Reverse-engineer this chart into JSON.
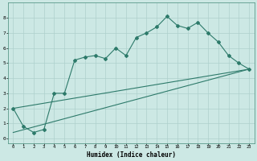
{
  "xlabel": "Humidex (Indice chaleur)",
  "ylabel": "",
  "bg_color": "#cce8e4",
  "grid_color": "#aed0cc",
  "line_color": "#2d7a6a",
  "xlim": [
    -0.5,
    23.5
  ],
  "ylim": [
    -0.3,
    9.0
  ],
  "xticks": [
    0,
    1,
    2,
    3,
    4,
    5,
    6,
    7,
    8,
    9,
    10,
    11,
    12,
    13,
    14,
    15,
    16,
    17,
    18,
    19,
    20,
    21,
    22,
    23
  ],
  "yticks": [
    0,
    1,
    2,
    3,
    4,
    5,
    6,
    7,
    8
  ],
  "curve1_x": [
    0,
    1,
    2,
    3,
    4,
    5,
    6,
    7,
    8,
    9,
    10,
    11,
    12,
    13,
    14,
    15,
    16,
    17,
    18,
    19,
    20,
    21,
    22,
    23
  ],
  "curve1_y": [
    2.0,
    0.8,
    0.4,
    0.6,
    3.0,
    3.0,
    5.2,
    5.4,
    5.5,
    5.3,
    6.0,
    5.5,
    6.7,
    7.0,
    7.4,
    8.1,
    7.5,
    7.3,
    7.7,
    7.0,
    6.4,
    5.5,
    5.0,
    4.6
  ],
  "curve2_x": [
    0,
    23
  ],
  "curve2_y": [
    2.0,
    4.6
  ],
  "curve3_x": [
    0,
    23
  ],
  "curve3_y": [
    0.4,
    4.6
  ]
}
